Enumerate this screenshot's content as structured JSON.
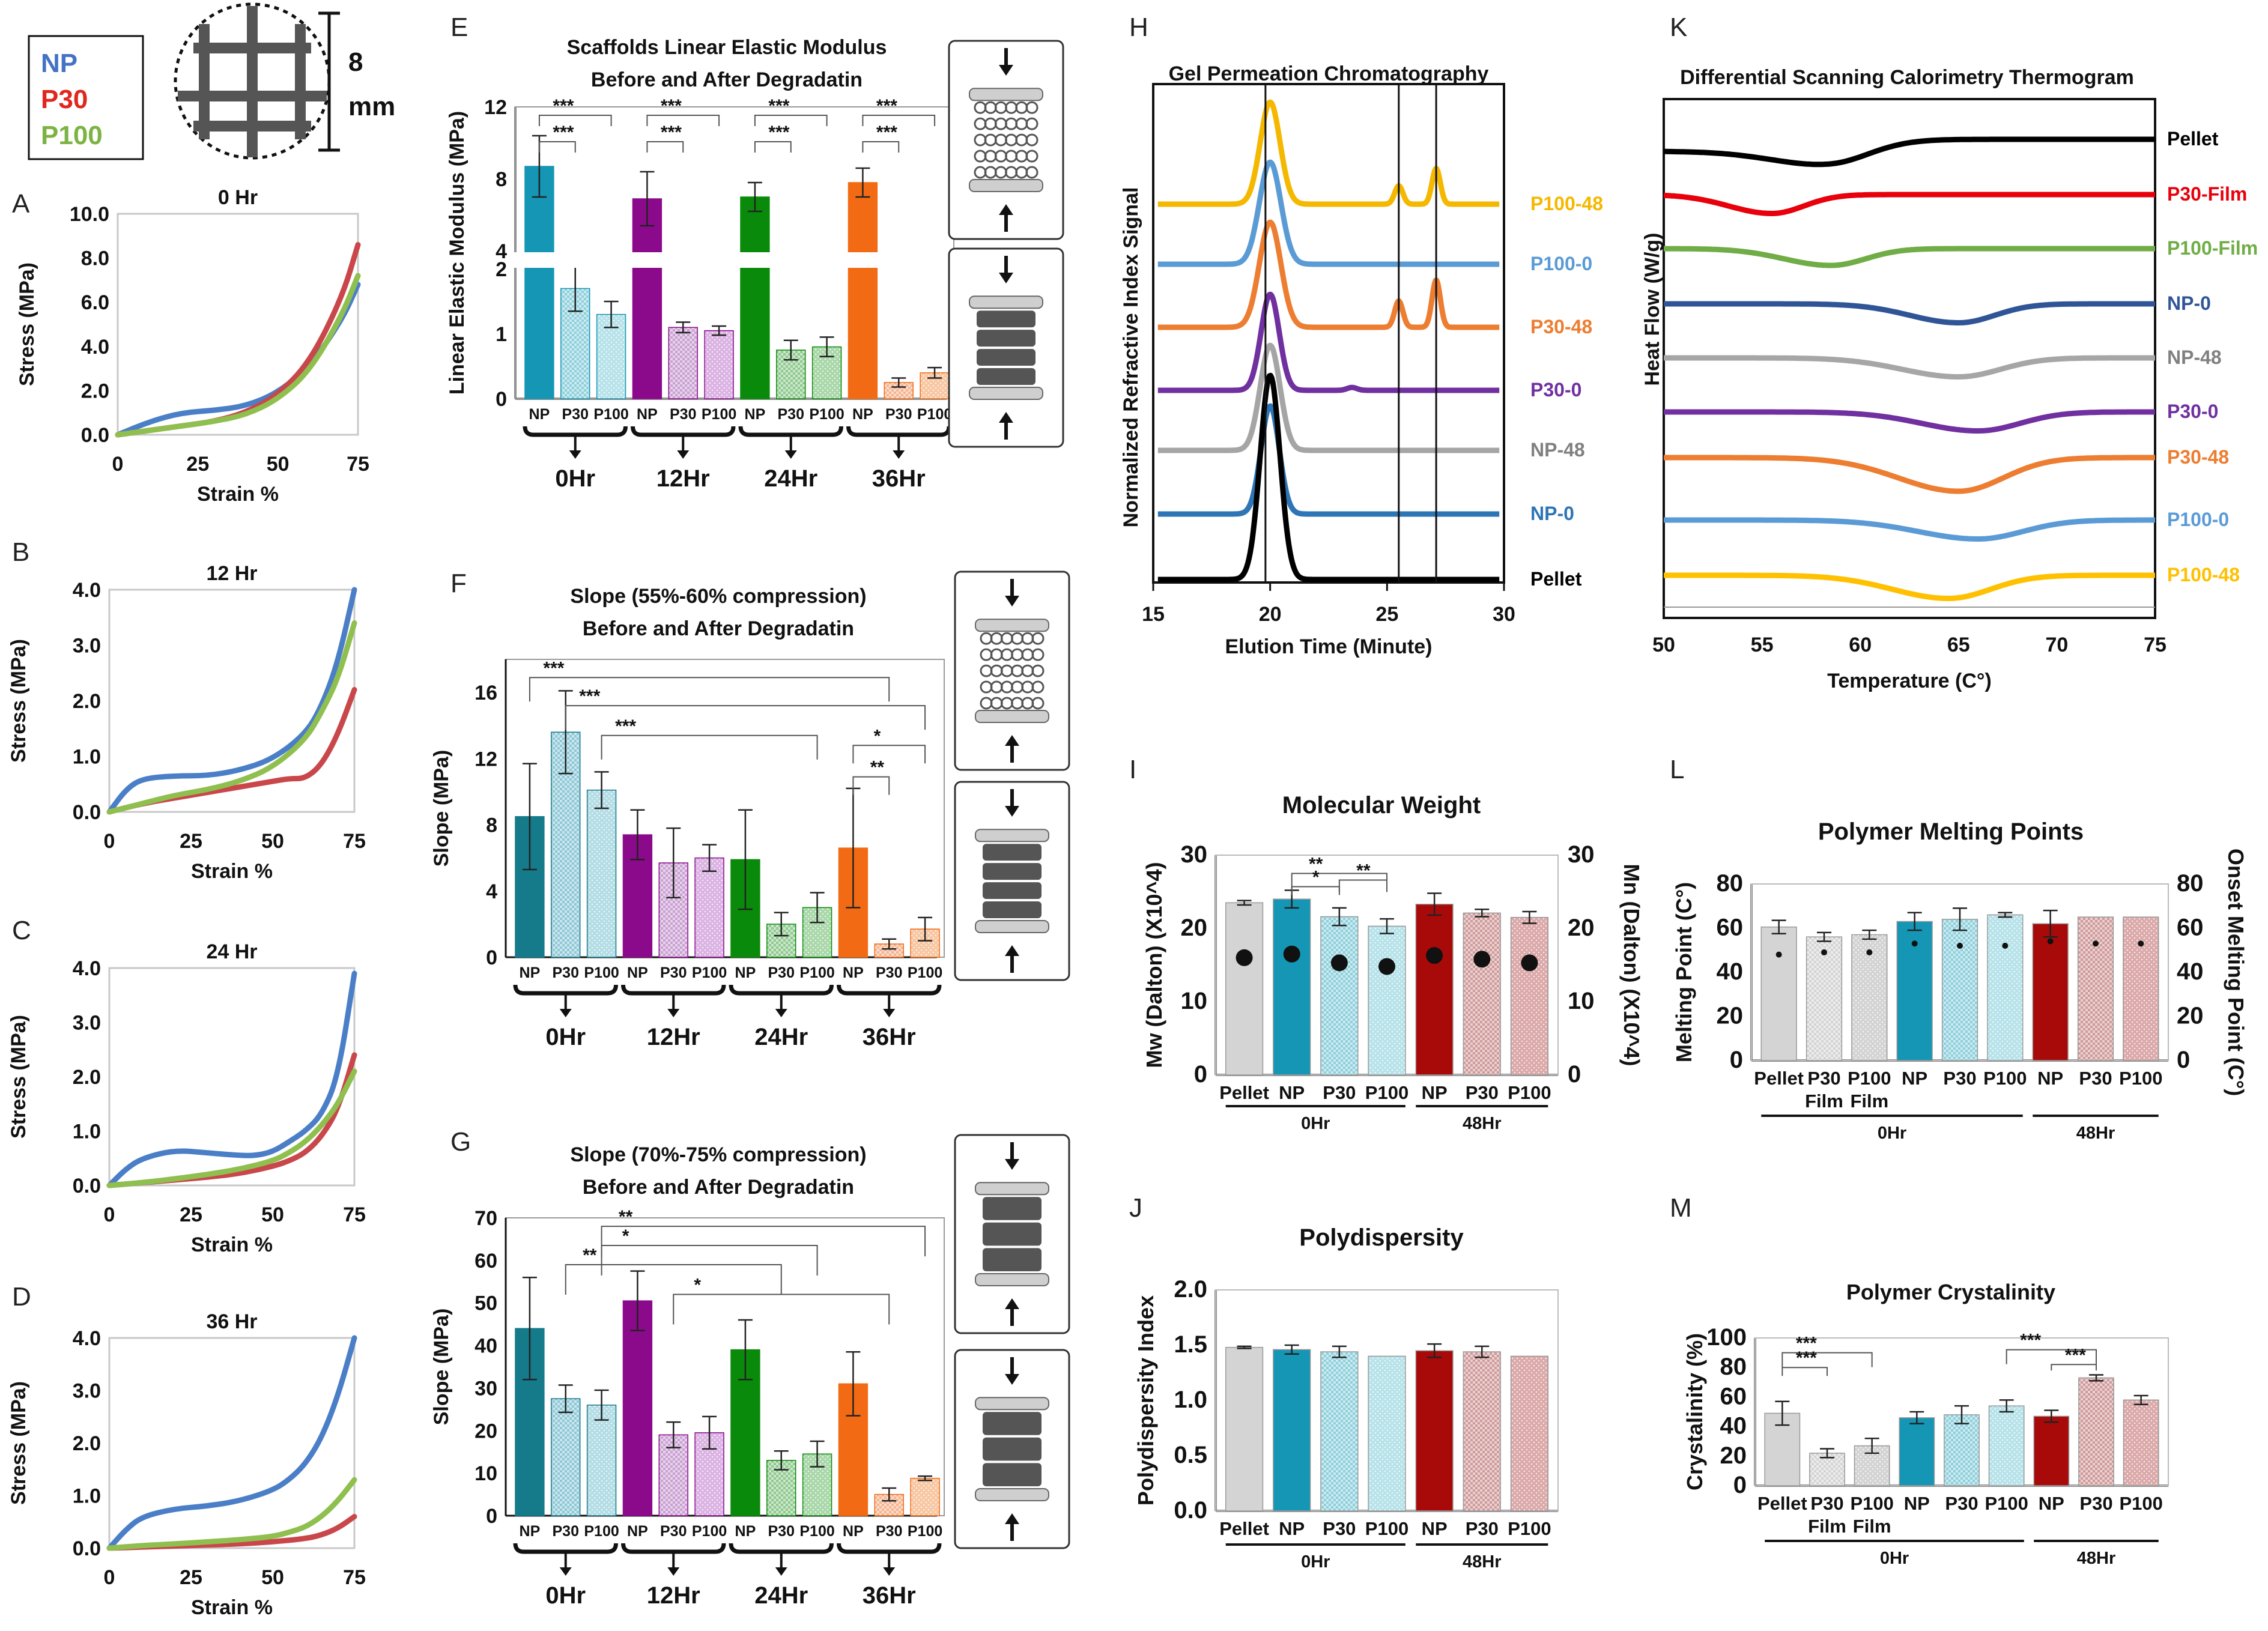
{
  "colors": {
    "np": "#4472c4",
    "p30": "#e0261d",
    "p100": "#7cb342",
    "np_line": "#4a7fc8",
    "p30_line": "#c9474a",
    "p100_line": "#8fbf4e",
    "bar_np": "#1496b4",
    "bar_p30": "#8ed0dc",
    "bar_p100": "#b8e3ea",
    "bar_12np": "#8b0a8b",
    "bar_12p30": "#c9a0d2",
    "bar_12p100": "#dcb4e4",
    "bar_24np": "#0a8a0a",
    "bar_24p30": "#8fc98f",
    "bar_24p100": "#aad8aa",
    "bar_36np": "#f26b14",
    "bar_36p30": "#f5b48f",
    "bar_36p100": "#f8c8a4",
    "bar_f_np": "#157a8a",
    "bar_f_p30": "#8ec8d6",
    "bar_f_p100": "#b5dde6",
    "bar_pellet": "#d4d4d4",
    "bar_red": "#a80a0a",
    "bar_red_p30": "#d09a9a",
    "bar_red_p100": "#dcaaaa"
  },
  "legend": {
    "np": "NP",
    "p30": "P30",
    "p100": "P100",
    "size_value": "8",
    "size_unit": "mm"
  },
  "panels": {
    "A": "A",
    "B": "B",
    "C": "C",
    "D": "D",
    "E": "E",
    "F": "F",
    "G": "G",
    "H": "H",
    "I": "I",
    "J": "J",
    "K": "K",
    "L": "L",
    "M": "M"
  },
  "stress_common": {
    "ylabel": "Stress (MPa)",
    "xlabel": "Strain %",
    "xticks": [
      "0",
      "25",
      "50",
      "75"
    ]
  },
  "chart_data": [
    {
      "id": "A",
      "type": "line",
      "title": "0 Hr",
      "xlim": [
        0,
        75
      ],
      "ylim": [
        0,
        10
      ],
      "yticks": [
        "0.0",
        "2.0",
        "4.0",
        "6.0",
        "8.0",
        "10.0"
      ],
      "series": [
        {
          "name": "NP",
          "x": [
            0,
            10,
            20,
            30,
            40,
            50,
            60,
            70,
            75
          ],
          "y": [
            0,
            0.6,
            1.0,
            1.1,
            1.3,
            1.9,
            3.1,
            5.2,
            6.8
          ]
        },
        {
          "name": "P30",
          "x": [
            0,
            10,
            20,
            30,
            40,
            50,
            60,
            70,
            75
          ],
          "y": [
            0,
            0.2,
            0.4,
            0.6,
            1.0,
            1.8,
            3.3,
            6.2,
            8.6
          ]
        },
        {
          "name": "P100",
          "x": [
            0,
            10,
            20,
            30,
            40,
            50,
            60,
            70,
            75
          ],
          "y": [
            0,
            0.2,
            0.4,
            0.6,
            0.9,
            1.6,
            2.9,
            5.4,
            7.2
          ]
        }
      ]
    },
    {
      "id": "B",
      "type": "line",
      "title": "12 Hr",
      "xlim": [
        0,
        75
      ],
      "ylim": [
        0,
        4
      ],
      "yticks": [
        "0.0",
        "1.0",
        "2.0",
        "3.0",
        "4.0"
      ],
      "series": [
        {
          "name": "NP",
          "x": [
            0,
            5,
            10,
            20,
            30,
            40,
            50,
            60,
            65,
            70,
            75
          ],
          "y": [
            0,
            0.4,
            0.6,
            0.65,
            0.65,
            0.75,
            0.95,
            1.4,
            1.9,
            2.7,
            4.0
          ]
        },
        {
          "name": "P30",
          "x": [
            0,
            10,
            20,
            30,
            40,
            50,
            55,
            60,
            65,
            70,
            75
          ],
          "y": [
            0,
            0.15,
            0.25,
            0.35,
            0.45,
            0.55,
            0.6,
            0.6,
            0.85,
            1.4,
            2.2
          ]
        },
        {
          "name": "P100",
          "x": [
            0,
            10,
            20,
            30,
            40,
            50,
            60,
            65,
            70,
            75
          ],
          "y": [
            0,
            0.15,
            0.3,
            0.4,
            0.55,
            0.8,
            1.3,
            1.8,
            2.4,
            3.4
          ]
        }
      ]
    },
    {
      "id": "C",
      "type": "line",
      "title": "24 Hr",
      "xlim": [
        0,
        75
      ],
      "ylim": [
        0,
        4
      ],
      "yticks": [
        "0.0",
        "1.0",
        "2.0",
        "3.0",
        "4.0"
      ],
      "series": [
        {
          "name": "NP",
          "x": [
            0,
            5,
            10,
            20,
            30,
            40,
            45,
            50,
            55,
            60,
            65,
            70,
            75
          ],
          "y": [
            0,
            0.3,
            0.5,
            0.65,
            0.6,
            0.55,
            0.55,
            0.62,
            0.8,
            1.0,
            1.3,
            2.0,
            3.9
          ]
        },
        {
          "name": "P30",
          "x": [
            0,
            10,
            20,
            30,
            40,
            50,
            55,
            60,
            65,
            70,
            75
          ],
          "y": [
            0,
            0.05,
            0.1,
            0.15,
            0.22,
            0.35,
            0.45,
            0.6,
            0.9,
            1.4,
            2.4
          ]
        },
        {
          "name": "P100",
          "x": [
            0,
            10,
            20,
            30,
            40,
            50,
            55,
            60,
            65,
            70,
            75
          ],
          "y": [
            0,
            0.05,
            0.12,
            0.2,
            0.3,
            0.45,
            0.6,
            0.8,
            1.1,
            1.5,
            2.1
          ]
        }
      ]
    },
    {
      "id": "D",
      "type": "line",
      "title": "36 Hr",
      "xlim": [
        0,
        75
      ],
      "ylim": [
        0,
        4
      ],
      "yticks": [
        "0.0",
        "1.0",
        "2.0",
        "3.0",
        "4.0"
      ],
      "series": [
        {
          "name": "NP",
          "x": [
            0,
            5,
            10,
            20,
            30,
            40,
            50,
            55,
            60,
            65,
            70,
            75
          ],
          "y": [
            0,
            0.35,
            0.6,
            0.75,
            0.8,
            0.9,
            1.1,
            1.3,
            1.6,
            2.1,
            2.9,
            4.0
          ]
        },
        {
          "name": "P30",
          "x": [
            0,
            10,
            20,
            30,
            40,
            50,
            60,
            65,
            70,
            75
          ],
          "y": [
            0,
            0.02,
            0.04,
            0.06,
            0.08,
            0.12,
            0.18,
            0.25,
            0.38,
            0.6
          ]
        },
        {
          "name": "P100",
          "x": [
            0,
            10,
            20,
            30,
            40,
            50,
            55,
            60,
            65,
            70,
            75
          ],
          "y": [
            0,
            0.05,
            0.08,
            0.12,
            0.16,
            0.22,
            0.3,
            0.4,
            0.6,
            0.9,
            1.3
          ]
        }
      ]
    },
    {
      "id": "E",
      "type": "bar",
      "title": [
        "Scaffolds Linear Elastic Modulus",
        "Before and After Degradatin"
      ],
      "ylabel": "Linear Elastic Modulus (MPa)",
      "categories": [
        "NP",
        "P30",
        "P100",
        "NP",
        "P30",
        "P100",
        "NP",
        "P30",
        "P100",
        "NP",
        "P30",
        "P100"
      ],
      "groups": [
        "0Hr",
        "12Hr",
        "24Hr",
        "36Hr"
      ],
      "values": [
        8.7,
        1.7,
        1.3,
        6.9,
        1.1,
        1.05,
        7.0,
        0.75,
        0.8,
        7.8,
        0.25,
        0.4
      ],
      "errors": [
        1.7,
        0.35,
        0.2,
        1.5,
        0.08,
        0.07,
        0.8,
        0.15,
        0.15,
        0.8,
        0.07,
        0.08
      ],
      "yticks_low": [
        "0",
        "1",
        "2"
      ],
      "yticks_high": [
        "4",
        "8",
        "12"
      ],
      "significance": [
        "***",
        "***",
        "***",
        "***",
        "***",
        "***",
        "***",
        "***"
      ]
    },
    {
      "id": "F",
      "type": "bar",
      "title": [
        "Slope (55%-60% compression)",
        "Before and After Degradatin"
      ],
      "ylabel": "Slope (MPa)",
      "categories": [
        "NP",
        "P30",
        "P100",
        "NP",
        "P30",
        "P100",
        "NP",
        "P30",
        "P100",
        "NP",
        "P30",
        "P100"
      ],
      "groups": [
        "0Hr",
        "12Hr",
        "24Hr",
        "36Hr"
      ],
      "values": [
        8.5,
        13.6,
        10.1,
        7.4,
        5.7,
        6.0,
        5.9,
        2.0,
        3.0,
        6.6,
        0.8,
        1.7
      ],
      "errors": [
        3.2,
        2.5,
        1.1,
        1.5,
        2.1,
        0.8,
        3.0,
        0.7,
        0.9,
        3.6,
        0.3,
        0.7
      ],
      "ylim": [
        0,
        18
      ],
      "yticks": [
        "0",
        "4",
        "8",
        "12",
        "16"
      ],
      "significance": [
        "***",
        "***",
        "***",
        "**",
        "*"
      ]
    },
    {
      "id": "G",
      "type": "bar",
      "title": [
        "Slope (70%-75% compression)",
        "Before and After Degradatin"
      ],
      "ylabel": "Slope (MPa)",
      "categories": [
        "NP",
        "P30",
        "P100",
        "NP",
        "P30",
        "P100",
        "NP",
        "P30",
        "P100",
        "NP",
        "P30",
        "P100"
      ],
      "groups": [
        "0Hr",
        "12Hr",
        "24Hr",
        "36Hr"
      ],
      "values": [
        44,
        27.5,
        26,
        50.5,
        19,
        19.5,
        39,
        13,
        14.5,
        31,
        5,
        8.8
      ],
      "errors": [
        12,
        3.2,
        3.5,
        7,
        3,
        3.8,
        7,
        2.2,
        3,
        7.5,
        1.5,
        0.5
      ],
      "ylim": [
        0,
        70
      ],
      "yticks": [
        "0",
        "10",
        "20",
        "30",
        "40",
        "50",
        "60",
        "70"
      ],
      "significance": [
        "**",
        "*",
        "**",
        "*"
      ]
    },
    {
      "id": "H",
      "type": "line",
      "title": "Gel Permeation Chromatography",
      "xlabel": "Elution Time (Minute)",
      "ylabel": "Normalized Refractive Index Signal",
      "xlim": [
        15,
        30
      ],
      "xticks": [
        "15",
        "20",
        "25",
        "30"
      ],
      "series": [
        {
          "name": "P100-48",
          "peaks": [
            [
              20,
              1.0,
              0.6
            ],
            [
              25.5,
              0.18,
              0.25
            ],
            [
              27.1,
              0.35,
              0.25
            ]
          ]
        },
        {
          "name": "P100-0",
          "peaks": [
            [
              20,
              1.0,
              0.65
            ]
          ]
        },
        {
          "name": "P30-48",
          "peaks": [
            [
              20,
              1.0,
              0.65
            ],
            [
              25.5,
              0.25,
              0.25
            ],
            [
              27.1,
              0.45,
              0.25
            ]
          ]
        },
        {
          "name": "P30-0",
          "peaks": [
            [
              20,
              1.0,
              0.55
            ],
            [
              23.5,
              0.03,
              0.3
            ]
          ]
        },
        {
          "name": "NP-48",
          "peaks": [
            [
              20,
              1.0,
              0.6
            ]
          ]
        },
        {
          "name": "NP-0",
          "peaks": [
            [
              20,
              1.0,
              0.55
            ]
          ]
        },
        {
          "name": "Pellet",
          "peaks": [
            [
              20,
              1.0,
              0.6
            ]
          ]
        }
      ],
      "vlines": [
        19.8,
        25.5,
        27.1
      ]
    },
    {
      "id": "K",
      "type": "line",
      "title": "Differential Scanning Calorimetry Thermogram",
      "xlabel": "Temperature (C°)",
      "ylabel": "Heat Flow (W/g)",
      "xlim": [
        50,
        75
      ],
      "xticks": [
        "50",
        "55",
        "60",
        "65",
        "70",
        "75"
      ],
      "series": [
        {
          "name": "Pellet",
          "dip_x": 58.5,
          "dip": 0.35,
          "width": 3.0
        },
        {
          "name": "P30-Film",
          "dip_x": 55.5,
          "dip": 0.45,
          "width": 2.3
        },
        {
          "name": "P100-Film",
          "dip_x": 58.5,
          "dip": 0.4,
          "width": 2.5
        },
        {
          "name": "NP-0",
          "dip_x": 65.0,
          "dip": 0.45,
          "width": 2.6
        },
        {
          "name": "NP-48",
          "dip_x": 65.0,
          "dip": 0.45,
          "width": 3.0
        },
        {
          "name": "P30-0",
          "dip_x": 66.0,
          "dip": 0.45,
          "width": 3.0
        },
        {
          "name": "P30-48",
          "dip_x": 65.0,
          "dip": 0.8,
          "width": 3.2
        },
        {
          "name": "P100-0",
          "dip_x": 66.0,
          "dip": 0.45,
          "width": 3.2
        },
        {
          "name": "P100-48",
          "dip_x": 64.5,
          "dip": 0.55,
          "width": 3.0
        }
      ]
    },
    {
      "id": "I",
      "type": "bar",
      "title": "Molecular Weight",
      "ylabel": "Mw (Dalton) (X10^4)",
      "y2label": "Mn (Dalton) (X10^4)",
      "categories": [
        "Pellet",
        "NP",
        "P30",
        "P100",
        "NP",
        "P30",
        "P100"
      ],
      "groups": [
        "0Hr",
        "48Hr"
      ],
      "values": [
        23.5,
        24,
        21.6,
        20.3,
        23.3,
        22.1,
        21.5
      ],
      "errors": [
        0.3,
        1.2,
        1.2,
        1.0,
        1.5,
        0.5,
        0.8
      ],
      "mn": [
        16,
        16.5,
        15.3,
        14.8,
        16.3,
        15.8,
        15.3
      ],
      "ylim": [
        0,
        30
      ],
      "yticks": [
        "0",
        "10",
        "20",
        "30"
      ],
      "significance": [
        "**",
        "*",
        "**"
      ]
    },
    {
      "id": "J",
      "type": "bar",
      "title": "Polydispersity",
      "ylabel": "Polydispersity Index",
      "categories": [
        "Pellet",
        "NP",
        "P30",
        "P100",
        "NP",
        "P30",
        "P100"
      ],
      "groups": [
        "0Hr",
        "48Hr"
      ],
      "values": [
        1.48,
        1.46,
        1.44,
        1.4,
        1.45,
        1.44,
        1.4
      ],
      "errors": [
        0.01,
        0.04,
        0.05,
        0.0,
        0.06,
        0.05,
        0.0
      ],
      "ylim": [
        0,
        2
      ],
      "yticks": [
        "0.0",
        "0.5",
        "1.0",
        "1.5",
        "2.0"
      ]
    },
    {
      "id": "L",
      "type": "bar",
      "title": "Polymer Melting Points",
      "ylabel": "Melting Point (C°)",
      "y2label": "Onset Melting Point (C°)",
      "categories": [
        "Pellet",
        "P30",
        "P100",
        "NP",
        "P30",
        "P100",
        "NP",
        "P30",
        "P100"
      ],
      "sublabels": [
        "",
        "Film",
        "Film",
        "",
        "",
        "",
        "",
        "",
        ""
      ],
      "groups": [
        "0Hr",
        "48Hr"
      ],
      "values": [
        60.5,
        56,
        57,
        63,
        64,
        66,
        62,
        65,
        65
      ],
      "errors": [
        3,
        2,
        2,
        4,
        5,
        1,
        6,
        0,
        0
      ],
      "onset": [
        48,
        49,
        49,
        53,
        52,
        52,
        54,
        53,
        53
      ],
      "ylim": [
        0,
        80
      ],
      "yticks": [
        "0",
        "20",
        "40",
        "60",
        "80"
      ]
    },
    {
      "id": "M",
      "type": "bar",
      "title": "Polymer Crystalinity",
      "ylabel": "Crystalinity (%)",
      "categories": [
        "Pellet",
        "P30",
        "P100",
        "NP",
        "P30",
        "P100",
        "NP",
        "P30",
        "P100"
      ],
      "sublabels": [
        "",
        "Film",
        "Film",
        "",
        "",
        "",
        "",
        "",
        ""
      ],
      "groups": [
        "0Hr",
        "48Hr"
      ],
      "values": [
        49,
        22,
        27,
        46,
        48,
        54,
        47,
        73,
        58
      ],
      "errors": [
        8,
        3,
        5,
        4,
        6,
        4,
        4,
        2,
        3
      ],
      "ylim": [
        0,
        100
      ],
      "yticks": [
        "0",
        "20",
        "40",
        "60",
        "80",
        "100"
      ],
      "significance": [
        "***",
        "***",
        "***",
        "***"
      ]
    }
  ]
}
